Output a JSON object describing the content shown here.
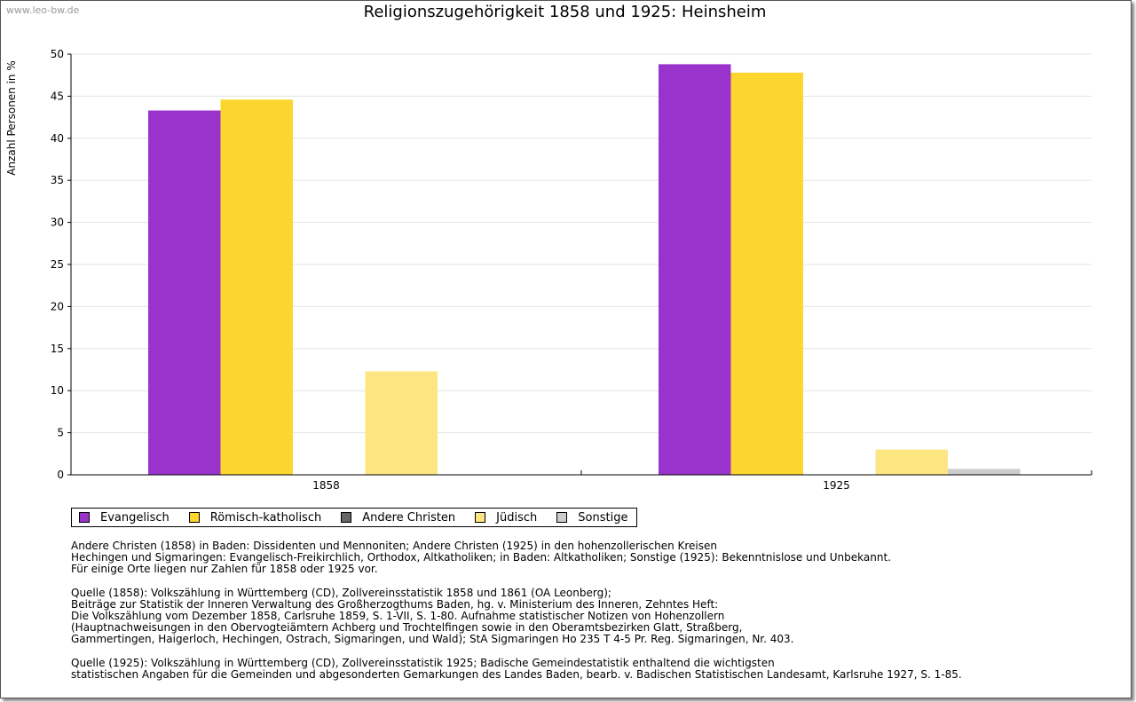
{
  "watermark": "www.leo-bw.de",
  "chart_data": {
    "type": "bar",
    "title": "Religionszugehörigkeit 1858 und 1925: Heinsheim",
    "xlabel": "",
    "ylabel": "Anzahl Personen in %",
    "ylim": [
      0,
      50
    ],
    "yticks": [
      0,
      5,
      10,
      15,
      20,
      25,
      30,
      35,
      40,
      45,
      50
    ],
    "grid": true,
    "legend_position": "bottom",
    "categories": [
      "1858",
      "1925"
    ],
    "series": [
      {
        "name": "Evangelisch",
        "color": "#9933cc",
        "values": [
          43.3,
          48.8
        ]
      },
      {
        "name": "Römisch-katholisch",
        "color": "#fdd52f",
        "values": [
          44.6,
          47.8
        ]
      },
      {
        "name": "Andere Christen",
        "color": "#666666",
        "values": [
          0,
          0
        ]
      },
      {
        "name": "Jüdisch",
        "color": "#fce682",
        "values": [
          12.3,
          3.0
        ]
      },
      {
        "name": "Sonstige",
        "color": "#cccccc",
        "values": [
          0,
          0.7
        ]
      }
    ]
  },
  "notes": [
    [
      "Andere Christen (1858) in Baden: Dissidenten und Mennoniten; Andere Christen (1925) in den hohenzollerischen Kreisen",
      "Hechingen und Sigmaringen: Evangelisch-Freikirchlich, Orthodox, Altkatholiken; in Baden: Altkatholiken; Sonstige (1925): Bekenntnislose und Unbekannt.",
      "Für einige Orte liegen nur Zahlen für 1858 oder 1925 vor."
    ],
    [
      "Quelle (1858): Volkszählung in Württemberg (CD), Zollvereinsstatistik 1858 und 1861 (OA Leonberg);",
      "Beiträge zur Statistik der Inneren Verwaltung des Großherzogthums Baden, hg. v. Ministerium des Inneren, Zehntes Heft:",
      "Die Volkszählung vom Dezember 1858, Carlsruhe 1859, S. 1-VII, S. 1-80. Aufnahme statistischer Notizen von Hohenzollern",
      "(Hauptnachweisungen in den Obervogteiämtern Achberg und Trochtelfingen sowie in den Oberamtsbezirken Glatt, Straßberg,",
      "Gammertingen, Haigerloch, Hechingen, Ostrach, Sigmaringen, und Wald); StA Sigmaringen Ho 235 T 4-5 Pr. Reg. Sigmaringen, Nr. 403."
    ],
    [
      "Quelle (1925): Volkszählung in Württemberg (CD), Zollvereinsstatistik 1925; Badische Gemeindestatistik enthaltend die wichtigsten",
      "statistischen Angaben für die Gemeinden und abgesonderten Gemarkungen des Landes Baden, bearb. v. Badischen Statistischen Landesamt, Karlsruhe 1927, S. 1-85."
    ]
  ]
}
